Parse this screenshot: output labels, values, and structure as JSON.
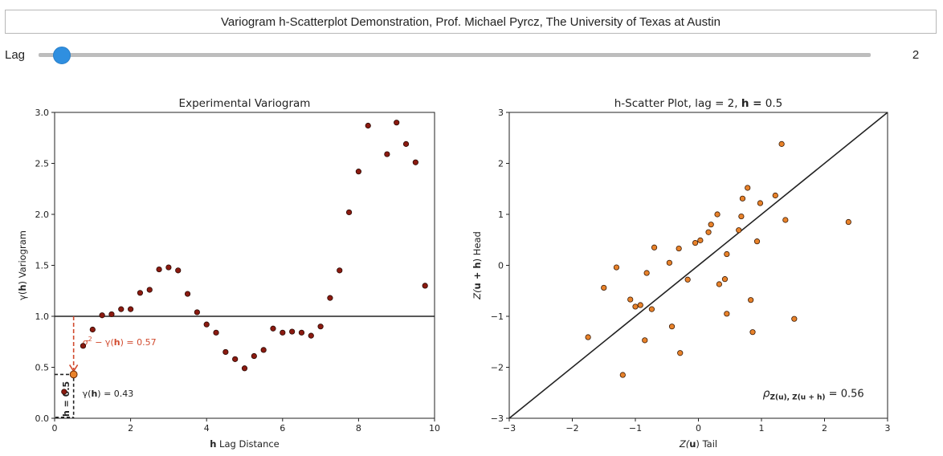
{
  "header": {
    "title": "Variogram h-Scatterplot Demonstration, Prof. Michael Pyrcz, The University of Texas at Austin"
  },
  "slider": {
    "label": "Lag",
    "value": 2,
    "min": 1,
    "max": 40
  },
  "chart_data": [
    {
      "type": "scatter",
      "title": "Experimental Variogram",
      "xlabel_bold": "h",
      "xlabel_rest": " Lag Distance",
      "ylabel_pre": "γ(",
      "ylabel_bold": "h",
      "ylabel_post": ") Variogram",
      "xlim": [
        0,
        10
      ],
      "ylim": [
        0,
        3
      ],
      "xticks": [
        0,
        2,
        4,
        6,
        8,
        10
      ],
      "yticks": [
        0.0,
        0.5,
        1.0,
        1.5,
        2.0,
        2.5,
        3.0
      ],
      "sill": 1.0,
      "points": [
        [
          0.25,
          0.26
        ],
        [
          0.5,
          0.43
        ],
        [
          0.75,
          0.71
        ],
        [
          1.0,
          0.87
        ],
        [
          1.25,
          1.01
        ],
        [
          1.5,
          1.02
        ],
        [
          1.75,
          1.07
        ],
        [
          2.0,
          1.07
        ],
        [
          2.25,
          1.23
        ],
        [
          2.5,
          1.26
        ],
        [
          2.75,
          1.46
        ],
        [
          3.0,
          1.48
        ],
        [
          3.25,
          1.45
        ],
        [
          3.5,
          1.22
        ],
        [
          3.75,
          1.04
        ],
        [
          4.0,
          0.92
        ],
        [
          4.25,
          0.84
        ],
        [
          4.5,
          0.65
        ],
        [
          4.75,
          0.58
        ],
        [
          5.0,
          0.49
        ],
        [
          5.25,
          0.61
        ],
        [
          5.5,
          0.67
        ],
        [
          5.75,
          0.88
        ],
        [
          6.0,
          0.84
        ],
        [
          6.25,
          0.85
        ],
        [
          6.5,
          0.84
        ],
        [
          6.75,
          0.81
        ],
        [
          7.0,
          0.9
        ],
        [
          7.25,
          1.18
        ],
        [
          7.5,
          1.45
        ],
        [
          7.75,
          2.02
        ],
        [
          8.0,
          2.42
        ],
        [
          8.25,
          2.87
        ],
        [
          8.75,
          2.59
        ],
        [
          9.0,
          2.9
        ],
        [
          9.25,
          2.69
        ],
        [
          9.5,
          2.51
        ],
        [
          9.75,
          1.3
        ]
      ],
      "highlight": {
        "x": 0.5,
        "y": 0.43,
        "sill_annotation_pre": "σ",
        "sill_annotation_sup": "2",
        "sill_annotation_mid": " − γ(",
        "sill_annotation_bold": "h",
        "sill_annotation_post": ") =  0.57",
        "gamma_annotation_pre": "γ(",
        "gamma_annotation_bold": "h",
        "gamma_annotation_post": ") =  0.43",
        "lag_annotation": "h = 0.5"
      },
      "colors": {
        "points": "#8b1a10",
        "highlight": "#e8822a",
        "annotation": "#d14a2e",
        "sill_line": "#222222"
      }
    },
    {
      "type": "scatter",
      "title_pre": "h-Scatter Plot, lag = 2, ",
      "title_bold": "h =",
      "title_post": "  0.5",
      "xlabel_pre": "Z(",
      "xlabel_bold": "u",
      "xlabel_post": ") Tail",
      "ylabel_pre": "Z(",
      "ylabel_bold": "u + h",
      "ylabel_post": ") Head",
      "xlim": [
        -3,
        3
      ],
      "ylim": [
        -3,
        3
      ],
      "xticks": [
        -3,
        -2,
        -1,
        0,
        1,
        2,
        3
      ],
      "yticks": [
        -3,
        -2,
        -1,
        0,
        1,
        2,
        3
      ],
      "points": [
        [
          -1.75,
          -1.41
        ],
        [
          -1.5,
          -0.44
        ],
        [
          -1.3,
          -0.04
        ],
        [
          -1.2,
          -2.15
        ],
        [
          -1.08,
          -0.67
        ],
        [
          -1.0,
          -0.81
        ],
        [
          -0.92,
          -0.78
        ],
        [
          -0.85,
          -1.47
        ],
        [
          -0.82,
          -0.15
        ],
        [
          -0.74,
          -0.86
        ],
        [
          -0.7,
          0.35
        ],
        [
          -0.46,
          0.05
        ],
        [
          -0.42,
          -1.2
        ],
        [
          -0.31,
          0.33
        ],
        [
          -0.29,
          -1.72
        ],
        [
          -0.17,
          -0.28
        ],
        [
          -0.05,
          0.44
        ],
        [
          0.03,
          0.49
        ],
        [
          0.16,
          0.65
        ],
        [
          0.2,
          0.8
        ],
        [
          0.3,
          1.0
        ],
        [
          0.33,
          -0.37
        ],
        [
          0.42,
          -0.27
        ],
        [
          0.45,
          0.22
        ],
        [
          0.45,
          -0.95
        ],
        [
          0.64,
          0.69
        ],
        [
          0.68,
          0.96
        ],
        [
          0.7,
          1.31
        ],
        [
          0.78,
          1.52
        ],
        [
          0.83,
          -0.68
        ],
        [
          0.86,
          -1.31
        ],
        [
          0.93,
          0.47
        ],
        [
          0.98,
          1.22
        ],
        [
          1.22,
          1.37
        ],
        [
          1.32,
          2.38
        ],
        [
          1.38,
          0.89
        ],
        [
          1.52,
          -1.05
        ],
        [
          2.38,
          0.85
        ]
      ],
      "rho_pre": "ρ",
      "rho_sub": "Z(u), Z(u + h)",
      "rho_post": " = 0.56",
      "colors": {
        "points": "#e8822a",
        "identity_line": "#222222"
      }
    }
  ]
}
